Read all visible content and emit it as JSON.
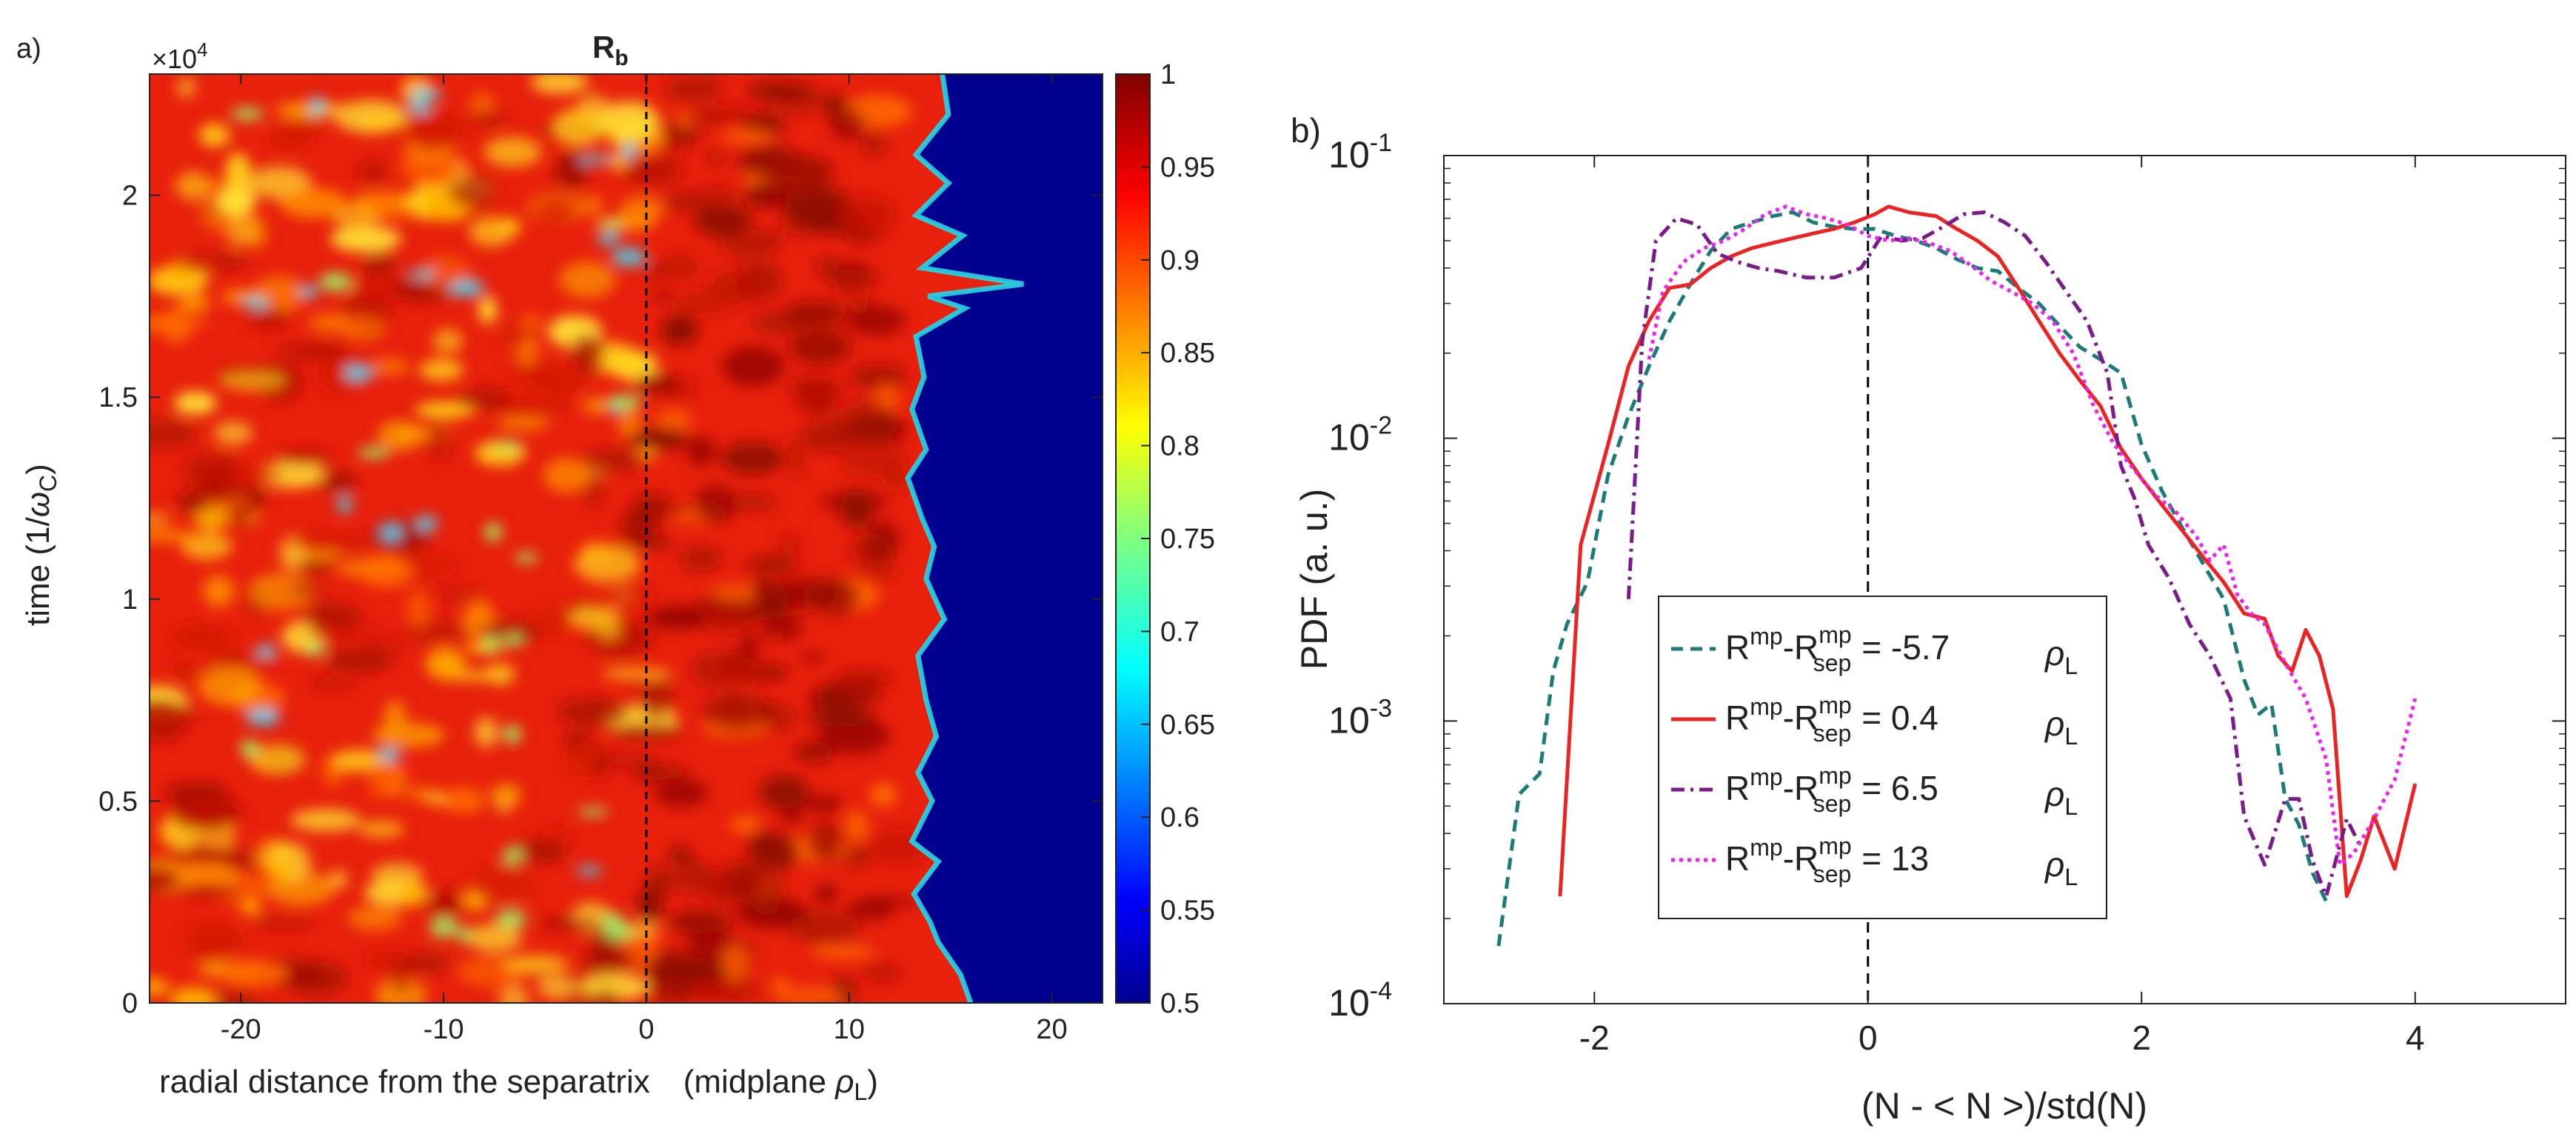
{
  "chart_data": [
    {
      "panel_label": "a)",
      "type": "heatmap",
      "title": "",
      "xlabel_main": "radial distance from the separatrix",
      "xlabel_unit": "(midplane ",
      "xlabel_unit_symbol": "ρ",
      "xlabel_unit_sub": "L",
      "xlabel_unit_close": ")",
      "ylabel_main": "time (1/",
      "ylabel_symbol": "ω",
      "ylabel_sub": "C",
      "ylabel_close": ")",
      "y_exponent_prefix": "×10",
      "y_exponent": "4",
      "xlim": [
        -24.5,
        22.5
      ],
      "ylim": [
        0,
        2.3
      ],
      "xticks": [
        -20,
        -10,
        0,
        10,
        20
      ],
      "xtick_labels": [
        "-20",
        "-10",
        "0",
        "10",
        "20"
      ],
      "yticks": [
        0,
        0.5,
        1,
        1.5,
        2
      ],
      "ytick_labels": [
        "0",
        "0.5",
        "1",
        "1.5",
        "2"
      ],
      "vline_x": 0,
      "vline_label": "R",
      "vline_label_sub": "b",
      "colorbar": {
        "range": [
          0.5,
          1
        ],
        "ticks": [
          0.5,
          0.55,
          0.6,
          0.65,
          0.7,
          0.75,
          0.8,
          0.85,
          0.9,
          0.95,
          1
        ],
        "tick_labels": [
          "0.5",
          "0.55",
          "0.6",
          "0.65",
          "0.7",
          "0.75",
          "0.8",
          "0.85",
          "0.9",
          "0.95",
          "1"
        ],
        "colormap": "jet"
      },
      "front_profile": [
        [
          0,
          16
        ],
        [
          0.07,
          15.5
        ],
        [
          0.15,
          14.4
        ],
        [
          0.2,
          14
        ],
        [
          0.27,
          13.2
        ],
        [
          0.35,
          14.4
        ],
        [
          0.4,
          13.1
        ],
        [
          0.5,
          14.1
        ],
        [
          0.57,
          13.4
        ],
        [
          0.66,
          14.3
        ],
        [
          0.75,
          13.8
        ],
        [
          0.86,
          13.4
        ],
        [
          0.95,
          14.7
        ],
        [
          1.05,
          13.8
        ],
        [
          1.13,
          14.2
        ],
        [
          1.2,
          13.6
        ],
        [
          1.3,
          12.9
        ],
        [
          1.37,
          13.8
        ],
        [
          1.47,
          13.1
        ],
        [
          1.55,
          13.7
        ],
        [
          1.65,
          13.3
        ],
        [
          1.72,
          15.7
        ],
        [
          1.75,
          13.9
        ],
        [
          1.78,
          18.6
        ],
        [
          1.82,
          13.6
        ],
        [
          1.9,
          15.6
        ],
        [
          1.95,
          13.3
        ],
        [
          2.03,
          14.9
        ],
        [
          2.1,
          13.3
        ],
        [
          2.2,
          14.9
        ],
        [
          2.3,
          14.6
        ]
      ]
    },
    {
      "panel_label": "b)",
      "type": "line",
      "title": "",
      "xlabel": "(N - < N >)/std(N)",
      "ylabel": "PDF (a. u.)",
      "yscale": "log",
      "xlim": [
        -3.1,
        5.1
      ],
      "ylim": [
        0.0001,
        0.1
      ],
      "xticks": [
        -2,
        0,
        2,
        4
      ],
      "xtick_labels": [
        "-2",
        "0",
        "2",
        "4"
      ],
      "ytick_base": "10",
      "ytick_exponents": [
        "-4",
        "-3",
        "-2",
        "-1"
      ],
      "vline_x": 0,
      "legend_position": "center",
      "legend_term1": "R",
      "legend_sup1": "mp",
      "legend_term2": "-R",
      "legend_sup2": "mp",
      "legend_sub2": "sep",
      "legend_unit_symbol": "ρ",
      "legend_unit_sub": "L",
      "series": [
        {
          "name": "R^mp-R^mp_sep = -5.7 ρL",
          "value_label": "= -5.7",
          "color": "#1b7a7a",
          "dash": "dashed",
          "points": [
            [
              -2.7,
              0.00016
            ],
            [
              -2.55,
              0.00055
            ],
            [
              -2.4,
              0.00065
            ],
            [
              -2.3,
              0.0015
            ],
            [
              -2.2,
              0.0022
            ],
            [
              -2.05,
              0.0031
            ],
            [
              -1.9,
              0.0074
            ],
            [
              -1.75,
              0.012
            ],
            [
              -1.6,
              0.018
            ],
            [
              -1.45,
              0.026
            ],
            [
              -1.3,
              0.035
            ],
            [
              -1.15,
              0.046
            ],
            [
              -1.0,
              0.055
            ],
            [
              -0.85,
              0.058
            ],
            [
              -0.7,
              0.061
            ],
            [
              -0.55,
              0.063
            ],
            [
              -0.4,
              0.058
            ],
            [
              -0.25,
              0.056
            ],
            [
              -0.1,
              0.055
            ],
            [
              0.05,
              0.055
            ],
            [
              0.2,
              0.052
            ],
            [
              0.35,
              0.05
            ],
            [
              0.5,
              0.047
            ],
            [
              0.65,
              0.043
            ],
            [
              0.8,
              0.04
            ],
            [
              0.95,
              0.039
            ],
            [
              1.1,
              0.034
            ],
            [
              1.25,
              0.03
            ],
            [
              1.4,
              0.025
            ],
            [
              1.55,
              0.021
            ],
            [
              1.7,
              0.019
            ],
            [
              1.85,
              0.017
            ],
            [
              2.0,
              0.0095
            ],
            [
              2.15,
              0.0065
            ],
            [
              2.3,
              0.0048
            ],
            [
              2.45,
              0.0036
            ],
            [
              2.6,
              0.0027
            ],
            [
              2.75,
              0.0014
            ],
            [
              2.85,
              0.00105
            ],
            [
              2.95,
              0.00115
            ],
            [
              3.05,
              0.00053
            ],
            [
              3.15,
              0.00043
            ],
            [
              3.25,
              0.00029
            ],
            [
              3.35,
              0.00023
            ]
          ]
        },
        {
          "name": "R^mp-R^mp_sep = 0.4 ρL",
          "value_label": "= 0.4",
          "color": "#ee2222",
          "dash": "solid",
          "points": [
            [
              -2.25,
              0.00024
            ],
            [
              -2.1,
              0.0042
            ],
            [
              -1.9,
              0.0095
            ],
            [
              -1.75,
              0.018
            ],
            [
              -1.6,
              0.026
            ],
            [
              -1.45,
              0.034
            ],
            [
              -1.3,
              0.035
            ],
            [
              -1.15,
              0.04
            ],
            [
              -1.0,
              0.044
            ],
            [
              -0.85,
              0.047
            ],
            [
              -0.7,
              0.049
            ],
            [
              -0.55,
              0.051
            ],
            [
              -0.4,
              0.053
            ],
            [
              -0.25,
              0.055
            ],
            [
              -0.1,
              0.058
            ],
            [
              0.05,
              0.062
            ],
            [
              0.15,
              0.066
            ],
            [
              0.3,
              0.063
            ],
            [
              0.5,
              0.061
            ],
            [
              0.65,
              0.055
            ],
            [
              0.8,
              0.05
            ],
            [
              0.95,
              0.044
            ],
            [
              1.1,
              0.034
            ],
            [
              1.25,
              0.026
            ],
            [
              1.4,
              0.02
            ],
            [
              1.55,
              0.016
            ],
            [
              1.7,
              0.013
            ],
            [
              1.85,
              0.0092
            ],
            [
              2.0,
              0.0072
            ],
            [
              2.15,
              0.0058
            ],
            [
              2.3,
              0.0047
            ],
            [
              2.45,
              0.0038
            ],
            [
              2.6,
              0.0031
            ],
            [
              2.75,
              0.0024
            ],
            [
              2.9,
              0.0023
            ],
            [
              3.0,
              0.0017
            ],
            [
              3.1,
              0.0015
            ],
            [
              3.2,
              0.0021
            ],
            [
              3.3,
              0.0017
            ],
            [
              3.4,
              0.0011
            ],
            [
              3.5,
              0.00024
            ],
            [
              3.6,
              0.00032
            ],
            [
              3.7,
              0.00046
            ],
            [
              3.85,
              0.0003
            ],
            [
              4.0,
              0.0006
            ]
          ]
        },
        {
          "name": "R^mp-R^mp_sep = 6.5 ρL",
          "value_label": "= 6.5",
          "color": "#7a1a8c",
          "dash": "dashdot",
          "points": [
            [
              -1.75,
              0.0027
            ],
            [
              -1.65,
              0.022
            ],
            [
              -1.55,
              0.05
            ],
            [
              -1.4,
              0.06
            ],
            [
              -1.25,
              0.057
            ],
            [
              -1.1,
              0.045
            ],
            [
              -0.95,
              0.042
            ],
            [
              -0.8,
              0.04
            ],
            [
              -0.65,
              0.039
            ],
            [
              -0.45,
              0.037
            ],
            [
              -0.25,
              0.037
            ],
            [
              -0.05,
              0.04
            ],
            [
              0.1,
              0.052
            ],
            [
              0.25,
              0.05
            ],
            [
              0.4,
              0.051
            ],
            [
              0.55,
              0.056
            ],
            [
              0.7,
              0.062
            ],
            [
              0.85,
              0.063
            ],
            [
              1.0,
              0.058
            ],
            [
              1.15,
              0.052
            ],
            [
              1.3,
              0.042
            ],
            [
              1.45,
              0.033
            ],
            [
              1.6,
              0.026
            ],
            [
              1.75,
              0.017
            ],
            [
              1.85,
              0.008
            ],
            [
              1.95,
              0.0061
            ],
            [
              2.05,
              0.0042
            ],
            [
              2.2,
              0.0032
            ],
            [
              2.35,
              0.0022
            ],
            [
              2.5,
              0.0017
            ],
            [
              2.65,
              0.0012
            ],
            [
              2.75,
              0.00046
            ],
            [
              2.9,
              0.00031
            ],
            [
              3.05,
              0.00053
            ],
            [
              3.15,
              0.00053
            ],
            [
              3.25,
              0.00032
            ],
            [
              3.35,
              0.00024
            ],
            [
              3.5,
              0.00045
            ],
            [
              3.6,
              0.00036
            ]
          ]
        },
        {
          "name": "R^mp-R^mp_sep = 13 ρL",
          "value_label": "= 13",
          "color": "#ee22ee",
          "dash": "dotted",
          "points": [
            [
              -1.6,
              0.019
            ],
            [
              -1.5,
              0.033
            ],
            [
              -1.35,
              0.042
            ],
            [
              -1.2,
              0.047
            ],
            [
              -1.05,
              0.05
            ],
            [
              -0.9,
              0.055
            ],
            [
              -0.75,
              0.062
            ],
            [
              -0.6,
              0.066
            ],
            [
              -0.45,
              0.062
            ],
            [
              -0.3,
              0.06
            ],
            [
              -0.15,
              0.057
            ],
            [
              0.0,
              0.052
            ],
            [
              0.15,
              0.05
            ],
            [
              0.3,
              0.051
            ],
            [
              0.45,
              0.049
            ],
            [
              0.6,
              0.046
            ],
            [
              0.75,
              0.041
            ],
            [
              0.9,
              0.036
            ],
            [
              1.05,
              0.033
            ],
            [
              1.2,
              0.03
            ],
            [
              1.35,
              0.026
            ],
            [
              1.5,
              0.02
            ],
            [
              1.65,
              0.013
            ],
            [
              1.8,
              0.0095
            ],
            [
              1.95,
              0.0077
            ],
            [
              2.1,
              0.0063
            ],
            [
              2.25,
              0.0055
            ],
            [
              2.4,
              0.0045
            ],
            [
              2.5,
              0.0037
            ],
            [
              2.6,
              0.0042
            ],
            [
              2.7,
              0.0028
            ],
            [
              2.8,
              0.0024
            ],
            [
              2.9,
              0.0022
            ],
            [
              3.05,
              0.0016
            ],
            [
              3.2,
              0.0012
            ],
            [
              3.35,
              0.00073
            ],
            [
              3.45,
              0.00031
            ],
            [
              3.55,
              0.00034
            ],
            [
              3.7,
              0.00045
            ],
            [
              3.85,
              0.00062
            ],
            [
              4.0,
              0.0012
            ]
          ]
        }
      ]
    }
  ]
}
